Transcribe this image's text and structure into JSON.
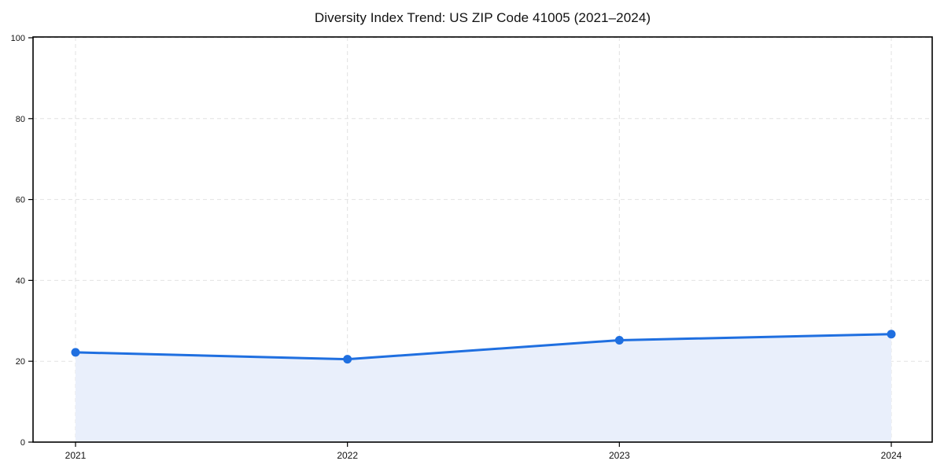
{
  "title": "Diversity Index Trend: US ZIP Code 41005 (2021–2024)",
  "chart_data": {
    "type": "line",
    "title": "Diversity Index Trend: US ZIP Code 41005 (2021–2024)",
    "categories": [
      "2021",
      "2022",
      "2023",
      "2024"
    ],
    "series": [
      {
        "name": "Diversity Index",
        "values": [
          22.2,
          20.5,
          25.2,
          26.7
        ]
      }
    ],
    "xlabel": "",
    "ylabel": "",
    "ylim": [
      0,
      100
    ],
    "yticks": [
      0,
      20,
      40,
      60,
      80,
      100
    ],
    "grid": true,
    "grid_style": "dashed",
    "legend_position": "none",
    "marker": "circle",
    "area_fill": true,
    "colors": {
      "line": "#1f6fe0",
      "marker": "#1f6fe0",
      "area_fill": "#e9effb",
      "grid": "#e2e2e2",
      "axis": "#000000",
      "tick_text": "#111111",
      "background": "#ffffff"
    }
  }
}
